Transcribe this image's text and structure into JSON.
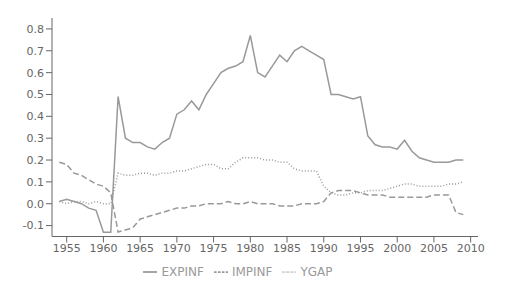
{
  "chart_data": {
    "type": "line",
    "x": [
      1954,
      1955,
      1956,
      1957,
      1958,
      1959,
      1960,
      1961,
      1962,
      1963,
      1964,
      1965,
      1966,
      1967,
      1968,
      1969,
      1970,
      1971,
      1972,
      1973,
      1974,
      1975,
      1976,
      1977,
      1978,
      1979,
      1980,
      1981,
      1982,
      1983,
      1984,
      1985,
      1986,
      1987,
      1988,
      1989,
      1990,
      1991,
      1992,
      1993,
      1994,
      1995,
      1996,
      1997,
      1998,
      1999,
      2000,
      2001,
      2002,
      2003,
      2004,
      2005,
      2006,
      2007,
      2008,
      2009
    ],
    "series": [
      {
        "name": "EXPINF",
        "color": "#999999",
        "line_style": "solid",
        "values": [
          0.01,
          0.02,
          0.01,
          0.0,
          -0.02,
          -0.03,
          -0.13,
          -0.13,
          0.49,
          0.3,
          0.28,
          0.28,
          0.26,
          0.25,
          0.28,
          0.3,
          0.41,
          0.43,
          0.47,
          0.43,
          0.5,
          0.55,
          0.6,
          0.62,
          0.63,
          0.65,
          0.77,
          0.6,
          0.58,
          0.63,
          0.68,
          0.65,
          0.7,
          0.72,
          0.7,
          0.68,
          0.66,
          0.5,
          0.5,
          0.49,
          0.48,
          0.49,
          0.31,
          0.27,
          0.26,
          0.26,
          0.25,
          0.29,
          0.24,
          0.21,
          0.2,
          0.19,
          0.19,
          0.19,
          0.2,
          0.2
        ]
      },
      {
        "name": "YGAP",
        "color": "#999999",
        "line_style": "dotted",
        "values": [
          0.01,
          0.0,
          0.01,
          0.01,
          0.0,
          0.01,
          0.0,
          0.0,
          0.14,
          0.13,
          0.13,
          0.14,
          0.14,
          0.13,
          0.14,
          0.14,
          0.15,
          0.15,
          0.16,
          0.17,
          0.18,
          0.18,
          0.16,
          0.16,
          0.19,
          0.21,
          0.21,
          0.21,
          0.2,
          0.2,
          0.19,
          0.19,
          0.16,
          0.15,
          0.15,
          0.15,
          0.08,
          0.05,
          0.04,
          0.04,
          0.05,
          0.05,
          0.06,
          0.06,
          0.06,
          0.07,
          0.08,
          0.09,
          0.09,
          0.08,
          0.08,
          0.08,
          0.08,
          0.09,
          0.09,
          0.1
        ]
      },
      {
        "name": "IMPINF",
        "color": "#999999",
        "line_style": "dashed",
        "values": [
          0.19,
          0.18,
          0.14,
          0.13,
          0.11,
          0.09,
          0.08,
          0.05,
          -0.13,
          -0.12,
          -0.11,
          -0.07,
          -0.06,
          -0.05,
          -0.04,
          -0.03,
          -0.02,
          -0.02,
          -0.01,
          -0.01,
          0.0,
          0.0,
          0.0,
          0.01,
          0.0,
          0.0,
          0.01,
          0.0,
          0.0,
          0.0,
          -0.01,
          -0.01,
          -0.01,
          0.0,
          0.0,
          0.0,
          0.01,
          0.05,
          0.06,
          0.06,
          0.06,
          0.05,
          0.04,
          0.04,
          0.04,
          0.03,
          0.03,
          0.03,
          0.03,
          0.03,
          0.03,
          0.04,
          0.04,
          0.04,
          -0.04,
          -0.05
        ]
      }
    ],
    "xlim": [
      1953,
      2011
    ],
    "ylim": [
      -0.15,
      0.85
    ],
    "xticks": [
      1955,
      1960,
      1965,
      1970,
      1975,
      1980,
      1985,
      1990,
      1995,
      2000,
      2005,
      2010
    ],
    "yticks": [
      -0.1,
      {
        "value": 0.0,
        "label": "0.0"
      },
      0.1,
      0.2,
      0.3,
      0.4,
      0.5,
      0.6,
      0.7,
      0.8
    ],
    "grid": false,
    "legend": "bottom"
  }
}
